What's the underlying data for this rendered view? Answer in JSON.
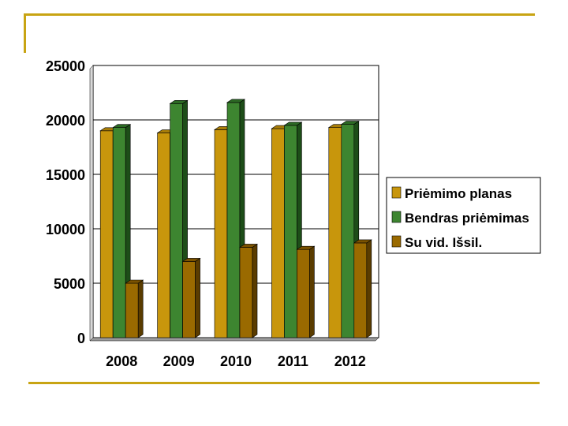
{
  "colors": {
    "accent_line": "#c8a413",
    "series": [
      "#c8960c",
      "#3d8530",
      "#9a6a00"
    ],
    "series_side": [
      "#8a6400",
      "#1d4d18",
      "#5a3c00"
    ],
    "series_top": [
      "#a87d08",
      "#2c6a24",
      "#7a5200"
    ]
  },
  "chart_data": {
    "type": "bar",
    "categories": [
      "2008",
      "2009",
      "2010",
      "2011",
      "2012"
    ],
    "series": [
      {
        "name": "Priėmimo planas",
        "values": [
          19000,
          18800,
          19100,
          19200,
          19300
        ]
      },
      {
        "name": "Bendras priėmimas",
        "values": [
          19300,
          21500,
          21600,
          19500,
          19600
        ]
      },
      {
        "name": "Su vid. Išsil.",
        "values": [
          5000,
          7000,
          8300,
          8100,
          8700
        ]
      }
    ],
    "ylim": [
      0,
      25000
    ],
    "yticks": [
      "0",
      "5000",
      "10000",
      "15000",
      "20000",
      "25000"
    ],
    "grid": true,
    "legend_position": "right"
  }
}
